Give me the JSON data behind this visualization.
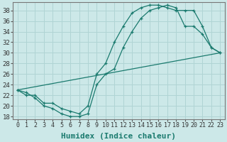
{
  "xlabel": "Humidex (Indice chaleur)",
  "ylabel": "",
  "bg_color": "#cce8e8",
  "line_color": "#1a7a6e",
  "xlim": [
    -0.5,
    23.5
  ],
  "ylim": [
    17.5,
    39.5
  ],
  "xticks": [
    0,
    1,
    2,
    3,
    4,
    5,
    6,
    7,
    8,
    9,
    10,
    11,
    12,
    13,
    14,
    15,
    16,
    17,
    18,
    19,
    20,
    21,
    22,
    23
  ],
  "yticks": [
    18,
    20,
    22,
    24,
    26,
    28,
    30,
    32,
    34,
    36,
    38
  ],
  "curve1_x": [
    0,
    1,
    2,
    3,
    4,
    5,
    6,
    7,
    8,
    9,
    10,
    11,
    12,
    13,
    14,
    15,
    16,
    17,
    18,
    19,
    20,
    21,
    22,
    23
  ],
  "curve1_y": [
    23,
    22.5,
    21.5,
    20,
    19.5,
    18.5,
    18,
    18,
    18.5,
    24,
    26,
    27,
    31,
    34,
    36.5,
    38,
    38.5,
    39,
    38.5,
    35,
    35,
    33.5,
    31,
    30
  ],
  "curve2_x": [
    0,
    1,
    2,
    3,
    4,
    5,
    6,
    7,
    8,
    9,
    10,
    11,
    12,
    13,
    14,
    15,
    16,
    17,
    18,
    19,
    20,
    21,
    22,
    23
  ],
  "curve2_y": [
    23,
    22,
    22,
    20.5,
    20.5,
    19.5,
    19,
    18.5,
    20,
    26,
    28,
    32,
    35,
    37.5,
    38.5,
    39,
    39,
    38.5,
    38,
    38,
    38,
    35,
    31,
    30
  ],
  "curve3_x": [
    0,
    23
  ],
  "curve3_y": [
    23,
    30
  ],
  "grid_color": "#b0d4d4",
  "font_size": 7.5
}
